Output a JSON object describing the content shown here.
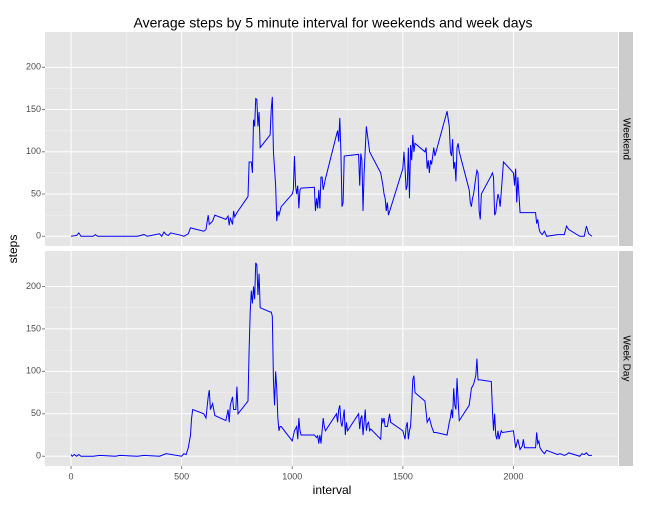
{
  "chart_data": {
    "type": "line",
    "title": "Average steps by 5 minute interval for weekends and week days",
    "x_label": "interval",
    "y_label": "steps",
    "xlim": [
      -117.75,
      2472.75
    ],
    "xticks": [
      0,
      500,
      1000,
      1500,
      2000
    ],
    "ylim": [
      -11.5,
      241.8
    ],
    "yticks": [
      0,
      50,
      100,
      150,
      200
    ],
    "grid": true,
    "series": [
      {
        "name": "Weekend",
        "color": "#0000ff",
        "x": [
          0,
          25,
          35,
          45,
          100,
          110,
          120,
          300,
          330,
          345,
          400,
          410,
          420,
          430,
          440,
          450,
          500,
          510,
          530,
          540,
          600,
          610,
          620,
          625,
          640,
          650,
          700,
          710,
          715,
          720,
          730,
          735,
          740,
          750,
          800,
          805,
          815,
          820,
          825,
          830,
          835,
          840,
          845,
          850,
          855,
          900,
          905,
          910,
          915,
          920,
          925,
          930,
          935,
          940,
          950,
          1000,
          1005,
          1010,
          1015,
          1020,
          1025,
          1030,
          1035,
          1040,
          1100,
          1105,
          1110,
          1115,
          1120,
          1125,
          1130,
          1135,
          1140,
          1150,
          1200,
          1205,
          1210,
          1215,
          1220,
          1225,
          1230,
          1235,
          1300,
          1305,
          1310,
          1315,
          1320,
          1325,
          1335,
          1350,
          1400,
          1410,
          1415,
          1420,
          1425,
          1430,
          1435,
          1500,
          1505,
          1510,
          1515,
          1520,
          1525,
          1530,
          1535,
          1540,
          1545,
          1550,
          1555,
          1600,
          1605,
          1610,
          1615,
          1620,
          1625,
          1630,
          1640,
          1645,
          1700,
          1710,
          1715,
          1720,
          1725,
          1730,
          1735,
          1740,
          1745,
          1750,
          1755,
          1800,
          1805,
          1810,
          1815,
          1820,
          1825,
          1830,
          1835,
          1840,
          1845,
          1850,
          1855,
          1900,
          1905,
          1910,
          1915,
          1920,
          1925,
          1930,
          1935,
          1940,
          1950,
          1955,
          2000,
          2005,
          2010,
          2015,
          2020,
          2030,
          2040,
          2100,
          2105,
          2110,
          2115,
          2120,
          2130,
          2140,
          2150,
          2200,
          2230,
          2240,
          2250,
          2300,
          2320,
          2330,
          2340,
          2355
        ],
        "values": [
          0,
          1,
          4,
          0,
          0,
          2,
          0,
          0,
          2,
          0,
          3,
          0,
          5,
          2,
          1,
          4,
          1,
          0,
          3,
          10,
          6,
          8,
          25,
          14,
          18,
          25,
          20,
          24,
          13,
          22,
          14,
          30,
          23,
          28,
          47,
          88,
          88,
          75,
          138,
          130,
          163,
          162,
          130,
          147,
          105,
          120,
          150,
          165,
          100,
          80,
          60,
          18,
          30,
          25,
          35,
          50,
          55,
          95,
          60,
          50,
          60,
          33,
          55,
          57,
          58,
          30,
          45,
          33,
          55,
          33,
          70,
          70,
          55,
          68,
          120,
          125,
          112,
          140,
          100,
          35,
          40,
          95,
          97,
          60,
          98,
          90,
          30,
          75,
          130,
          100,
          75,
          60,
          50,
          45,
          30,
          40,
          25,
          80,
          100,
          80,
          55,
          60,
          105,
          45,
          108,
          90,
          120,
          100,
          110,
          100,
          105,
          80,
          90,
          75,
          90,
          85,
          105,
          95,
          148,
          130,
          100,
          95,
          115,
          80,
          88,
          65,
          105,
          110,
          100,
          55,
          40,
          35,
          45,
          50,
          60,
          70,
          78,
          75,
          30,
          20,
          50,
          72,
          75,
          70,
          25,
          28,
          40,
          50,
          45,
          35,
          70,
          88,
          75,
          60,
          80,
          40,
          70,
          28,
          28,
          28,
          15,
          20,
          10,
          5,
          2,
          6,
          0,
          2,
          2,
          12,
          8,
          0,
          0,
          12,
          3,
          0
        ]
      },
      {
        "name": "Week Day",
        "color": "#0000ff",
        "x": [
          0,
          5,
          15,
          25,
          35,
          45,
          100,
          130,
          200,
          220,
          300,
          330,
          400,
          430,
          500,
          510,
          520,
          530,
          540,
          545,
          550,
          600,
          610,
          620,
          625,
          630,
          640,
          650,
          700,
          710,
          715,
          720,
          730,
          735,
          745,
          750,
          755,
          800,
          805,
          810,
          815,
          820,
          825,
          830,
          835,
          840,
          845,
          850,
          855,
          900,
          905,
          910,
          915,
          920,
          925,
          930,
          935,
          940,
          945,
          950,
          1000,
          1010,
          1020,
          1025,
          1030,
          1035,
          1040,
          1100,
          1110,
          1115,
          1120,
          1125,
          1130,
          1135,
          1140,
          1145,
          1150,
          1200,
          1205,
          1210,
          1215,
          1220,
          1225,
          1230,
          1235,
          1240,
          1245,
          1250,
          1300,
          1305,
          1310,
          1315,
          1320,
          1325,
          1330,
          1335,
          1340,
          1345,
          1350,
          1355,
          1400,
          1405,
          1410,
          1415,
          1420,
          1430,
          1440,
          1445,
          1500,
          1510,
          1515,
          1520,
          1525,
          1530,
          1535,
          1540,
          1545,
          1550,
          1555,
          1600,
          1610,
          1620,
          1630,
          1640,
          1650,
          1700,
          1710,
          1715,
          1720,
          1725,
          1730,
          1735,
          1740,
          1745,
          1750,
          1755,
          1800,
          1810,
          1820,
          1830,
          1835,
          1840,
          1850,
          1900,
          1905,
          1910,
          1915,
          1920,
          1925,
          1930,
          1935,
          1940,
          1945,
          1950,
          2000,
          2005,
          2010,
          2020,
          2030,
          2040,
          2045,
          2050,
          2100,
          2105,
          2110,
          2115,
          2120,
          2130,
          2140,
          2150,
          2200,
          2210,
          2230,
          2240,
          2250,
          2300,
          2310,
          2320,
          2330,
          2340,
          2355
        ],
        "values": [
          2,
          0,
          2,
          0,
          2,
          0,
          0,
          1,
          0,
          1,
          0,
          1,
          0,
          3,
          0,
          3,
          2,
          10,
          25,
          45,
          55,
          50,
          45,
          70,
          78,
          55,
          62,
          48,
          42,
          55,
          40,
          60,
          70,
          55,
          55,
          82,
          50,
          65,
          125,
          170,
          195,
          180,
          200,
          185,
          228,
          225,
          190,
          215,
          175,
          170,
          170,
          165,
          90,
          60,
          100,
          80,
          45,
          30,
          35,
          35,
          18,
          30,
          35,
          20,
          45,
          30,
          25,
          25,
          22,
          24,
          15,
          25,
          15,
          30,
          45,
          35,
          30,
          50,
          40,
          55,
          60,
          40,
          35,
          45,
          55,
          25,
          40,
          30,
          50,
          32,
          45,
          48,
          25,
          40,
          55,
          30,
          38,
          40,
          30,
          32,
          20,
          45,
          40,
          45,
          35,
          35,
          50,
          40,
          30,
          20,
          35,
          40,
          20,
          30,
          35,
          60,
          90,
          95,
          75,
          65,
          40,
          45,
          35,
          28,
          28,
          25,
          40,
          45,
          55,
          45,
          80,
          60,
          55,
          92,
          65,
          42,
          60,
          80,
          85,
          95,
          115,
          90,
          90,
          88,
          55,
          30,
          50,
          25,
          20,
          30,
          20,
          25,
          30,
          28,
          30,
          20,
          10,
          20,
          8,
          12,
          20,
          10,
          10,
          28,
          15,
          18,
          10,
          6,
          3,
          7,
          2,
          3,
          1,
          2,
          4,
          0,
          3,
          2,
          4,
          1,
          1
        ]
      }
    ]
  }
}
